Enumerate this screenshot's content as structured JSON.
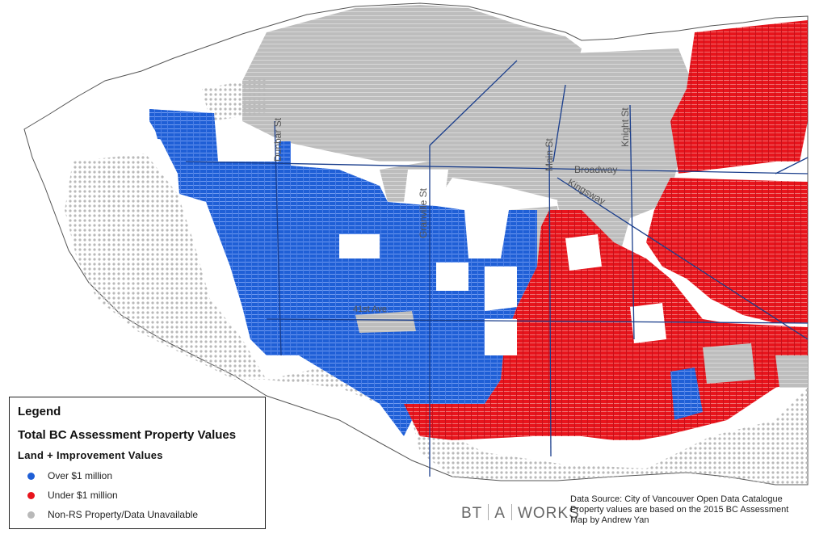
{
  "legend": {
    "title": "Legend",
    "subtitle": "Total BC Assessment Property Values",
    "heading": "Land + Improvement Values",
    "items": [
      {
        "label": "Over $1 million",
        "color": "#1f5fd6"
      },
      {
        "label": "Under $1 million",
        "color": "#e8141c"
      },
      {
        "label": "Non-RS Property/Data Unavailable",
        "color": "#b9b9b9"
      }
    ]
  },
  "streets": {
    "dunbar": "Dunbar St",
    "granville": "Granville St",
    "main": "Main St",
    "knight": "Knight St",
    "broadway": "Broadway",
    "kingsway": "Kingsway",
    "avenue41": "41st Ave"
  },
  "logo": {
    "part1": "BT",
    "part2": "A",
    "part3": "WORKS"
  },
  "source": {
    "line1": "Data Source: City of Vancouver Open Data Catalogue",
    "line2": "Property values are based on the 2015 BC Assessment",
    "line3": "Map by Andrew Yan"
  },
  "colors": {
    "over": "#1f5fd6",
    "under": "#e8141c",
    "na": "#b9b9b9",
    "road": "#1a3e8c"
  }
}
